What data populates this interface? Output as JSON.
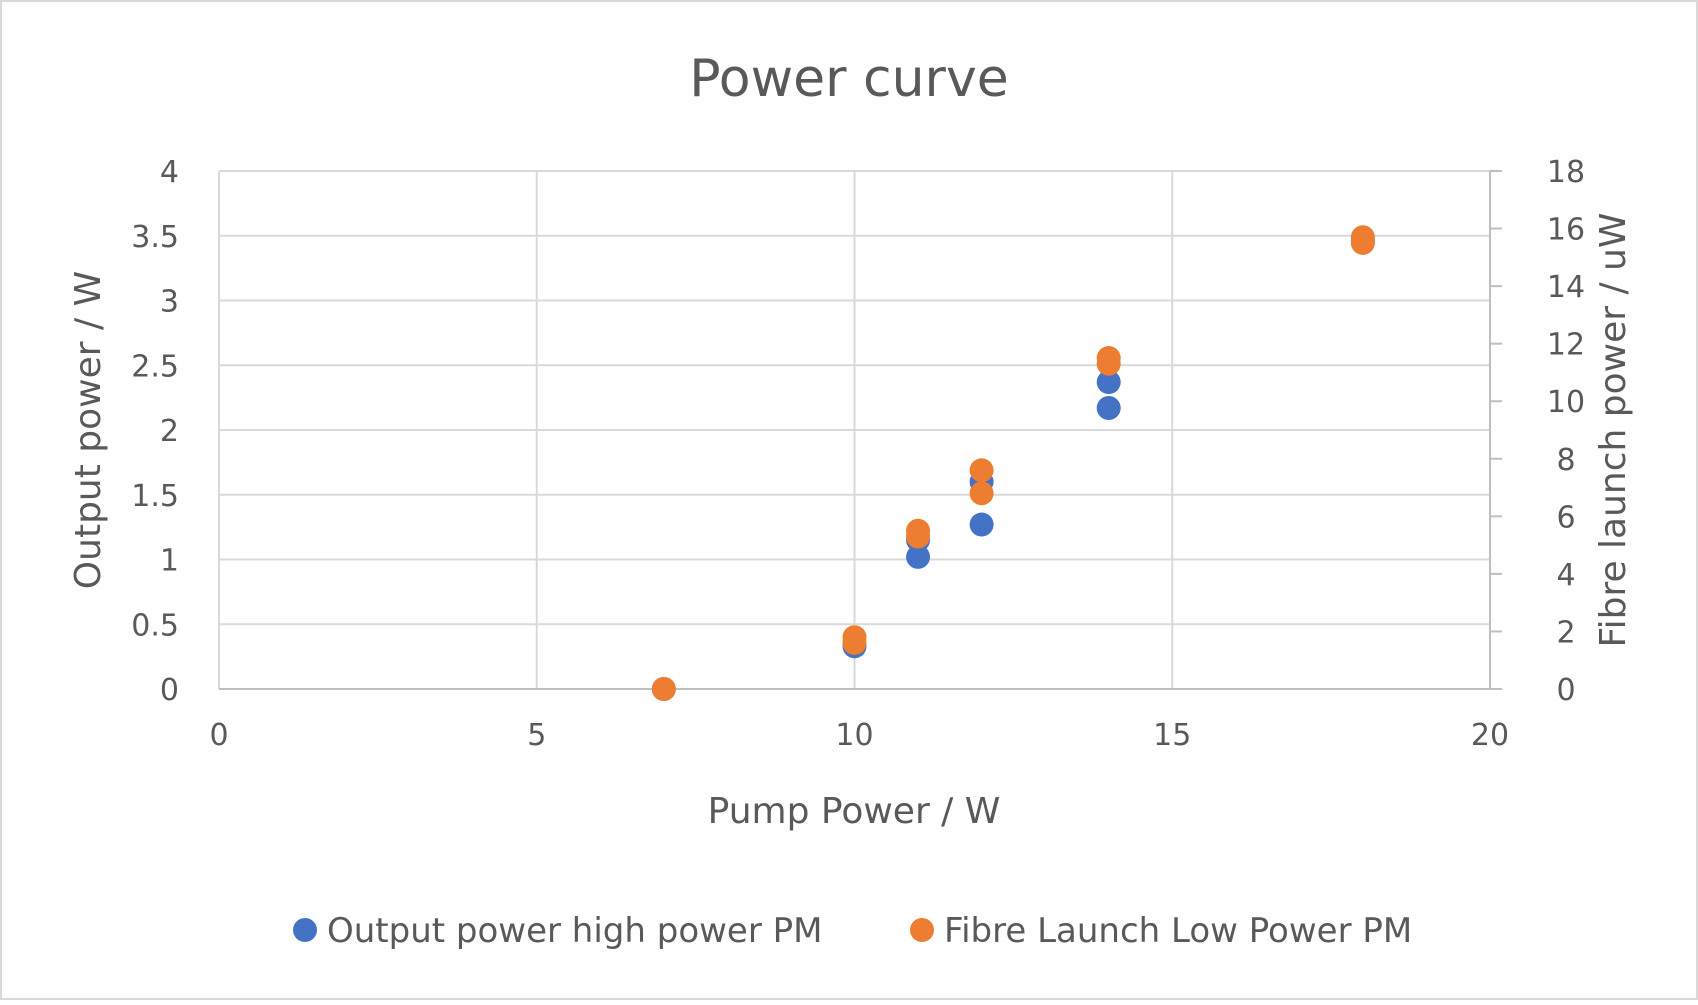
{
  "chart_data": {
    "type": "scatter",
    "title": "Power curve",
    "xlabel": "Pump Power / W",
    "ylabel": "Output power / W",
    "y2label": "Fibre launch power / uW",
    "xlim": [
      0,
      20
    ],
    "ylim": [
      0,
      4
    ],
    "y2lim": [
      0,
      18
    ],
    "xticks": [
      "0",
      "5",
      "10",
      "15",
      "20"
    ],
    "yticks": [
      "0",
      "0.5",
      "1",
      "1.5",
      "2",
      "2.5",
      "3",
      "3.5",
      "4"
    ],
    "y2ticks": [
      "0",
      "2",
      "4",
      "6",
      "8",
      "10",
      "12",
      "14",
      "16",
      "18"
    ],
    "grid": true,
    "legend_position": "bottom",
    "series": [
      {
        "name": "Output power high power PM",
        "axis": "left",
        "color": "#4472C4",
        "points": [
          [
            7,
            0
          ],
          [
            10,
            0.33
          ],
          [
            11,
            1.02
          ],
          [
            11,
            1.15
          ],
          [
            12,
            1.27
          ],
          [
            12,
            1.6
          ],
          [
            14,
            2.17
          ],
          [
            14,
            2.37
          ],
          [
            18,
            3.46
          ]
        ]
      },
      {
        "name": "Fibre Launch Low Power PM",
        "axis": "right",
        "color": "#ED7D31",
        "points": [
          [
            7,
            0
          ],
          [
            10,
            1.6
          ],
          [
            10,
            1.8
          ],
          [
            11,
            5.3
          ],
          [
            11,
            5.5
          ],
          [
            12,
            6.8
          ],
          [
            12,
            7.6
          ],
          [
            14,
            11.3
          ],
          [
            14,
            11.5
          ],
          [
            18,
            15.5
          ],
          [
            18,
            15.7
          ]
        ]
      }
    ]
  }
}
